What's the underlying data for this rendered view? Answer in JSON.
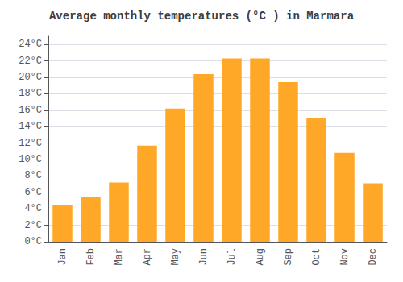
{
  "chart_data": {
    "type": "bar",
    "title": "Average monthly temperatures (°C ) in Marmara",
    "categories": [
      "Jan",
      "Feb",
      "Mar",
      "Apr",
      "May",
      "Jun",
      "Jul",
      "Aug",
      "Sep",
      "Oct",
      "Nov",
      "Dec"
    ],
    "values": [
      4.5,
      5.5,
      7.2,
      11.7,
      16.2,
      20.4,
      22.3,
      22.3,
      19.4,
      15.0,
      10.8,
      7.1
    ],
    "color": "#FFA726",
    "ylim": [
      0,
      25
    ],
    "yticks": [
      {
        "value": 0,
        "label": "0°C"
      },
      {
        "value": 2,
        "label": "2°C"
      },
      {
        "value": 4,
        "label": "4°C"
      },
      {
        "value": 6,
        "label": "6°C"
      },
      {
        "value": 8,
        "label": "8°C"
      },
      {
        "value": 10,
        "label": "10°C"
      },
      {
        "value": 12,
        "label": "12°C"
      },
      {
        "value": 14,
        "label": "14°C"
      },
      {
        "value": 16,
        "label": "16°C"
      },
      {
        "value": 18,
        "label": "18°C"
      },
      {
        "value": 20,
        "label": "20°C"
      },
      {
        "value": 22,
        "label": "22°C"
      },
      {
        "value": 24,
        "label": "24°C"
      }
    ],
    "grid": true
  }
}
